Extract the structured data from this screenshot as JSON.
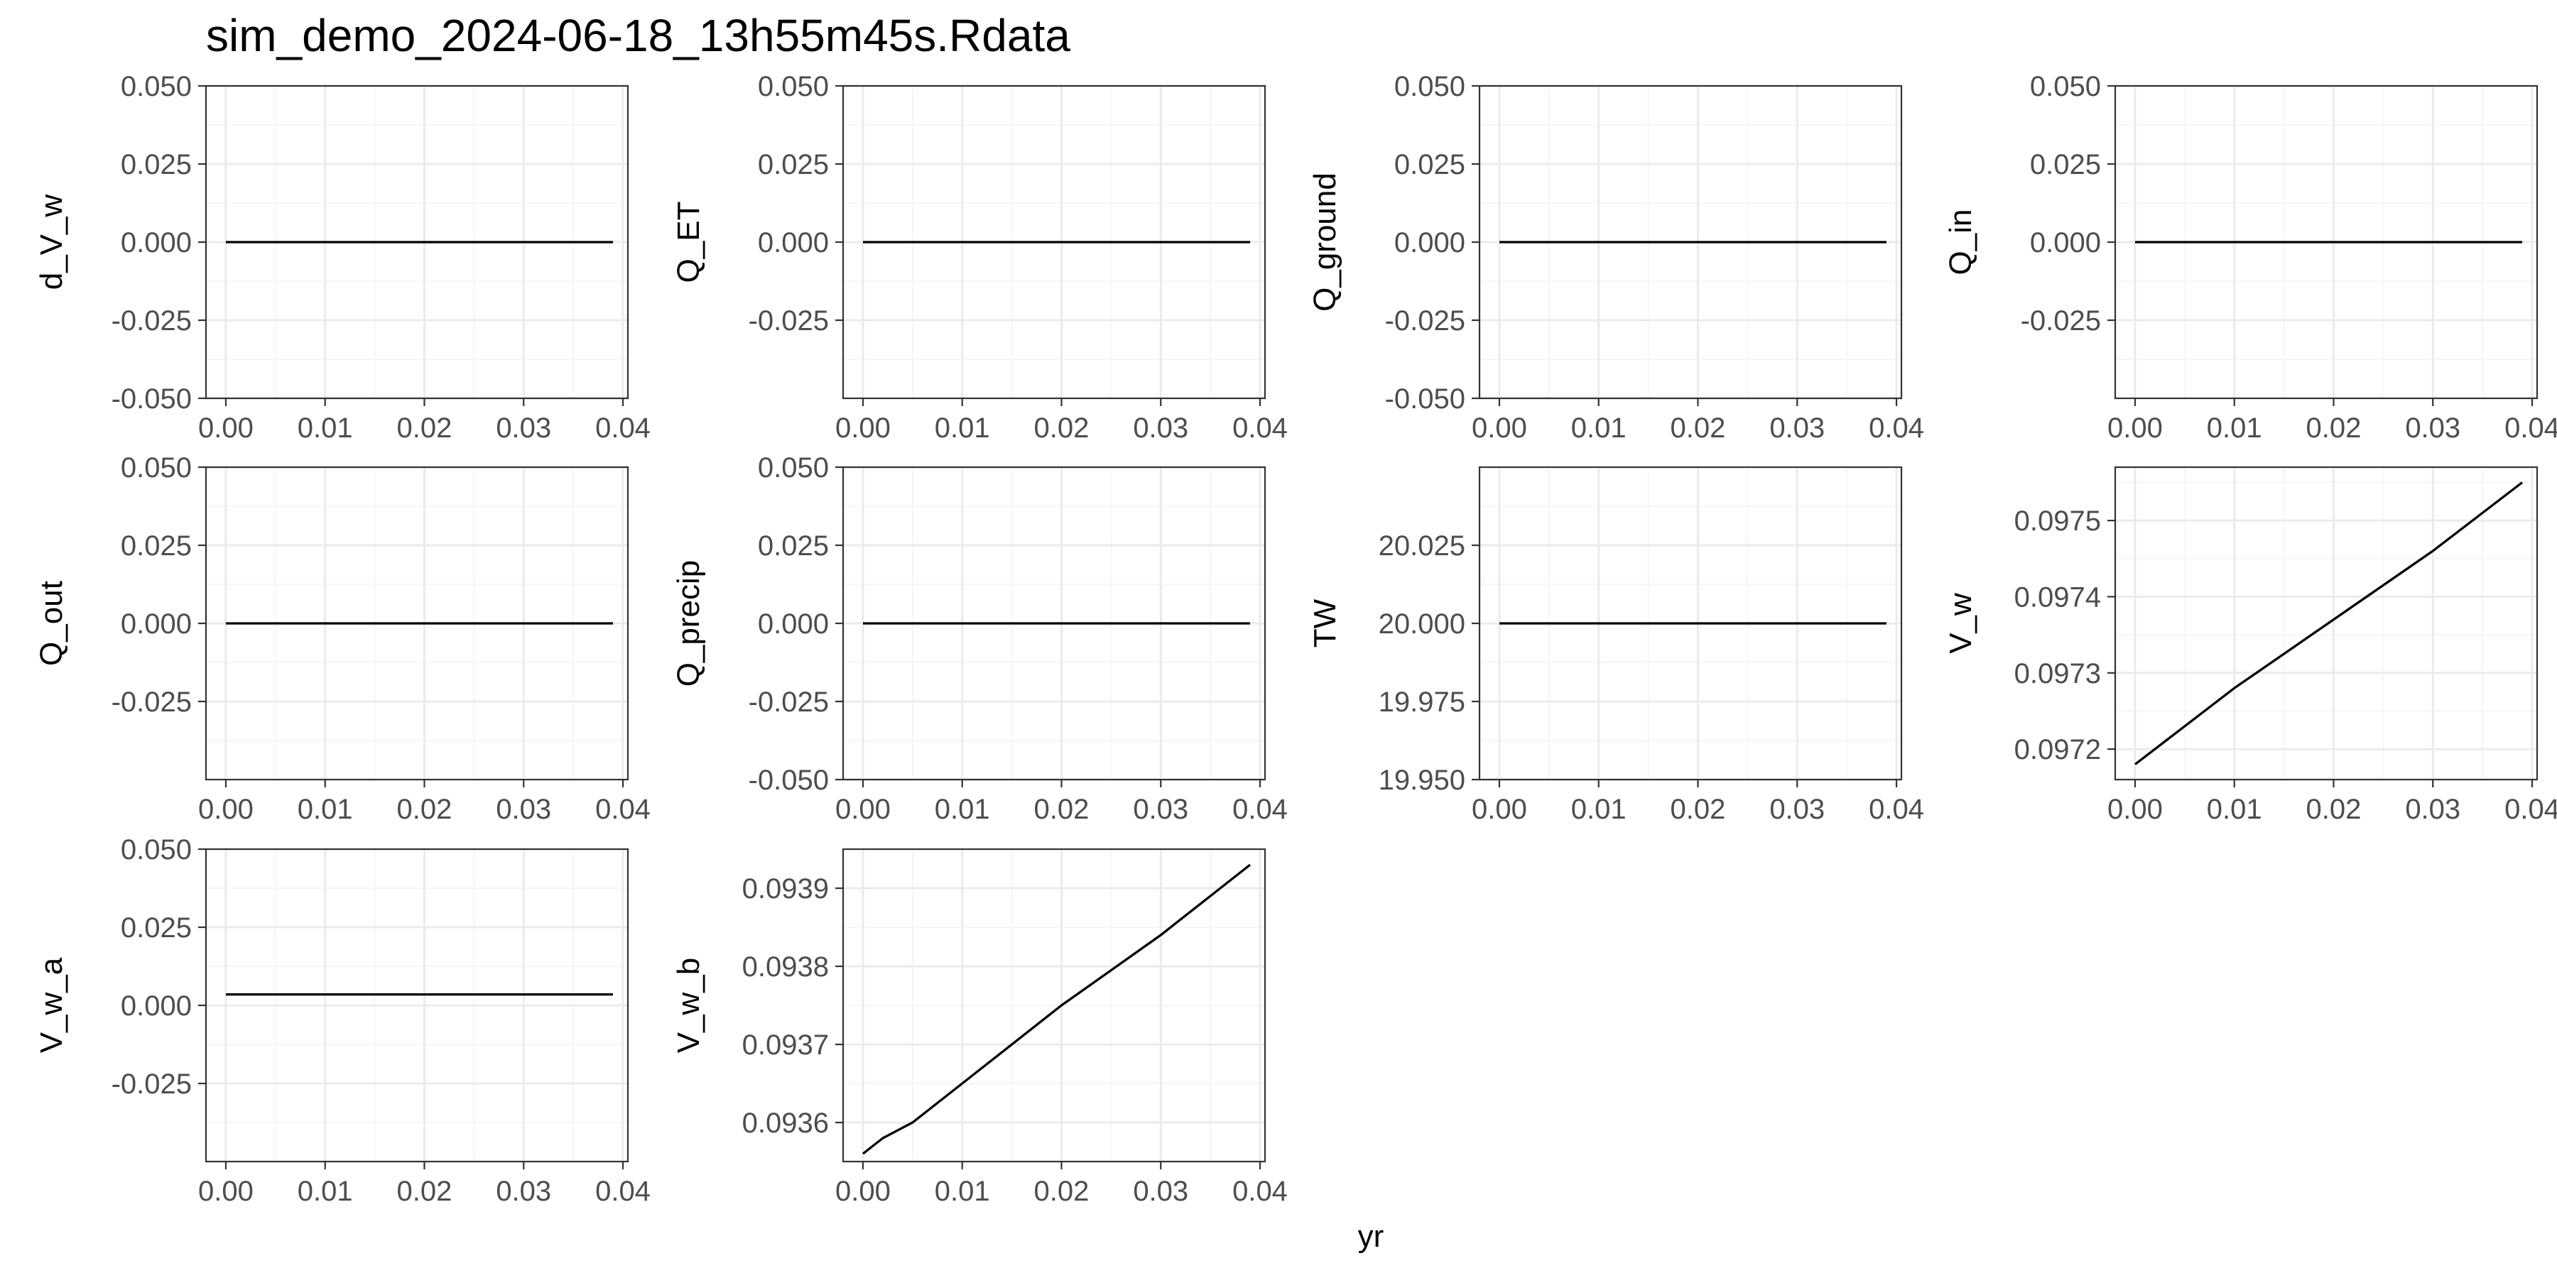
{
  "chart_data": {
    "type": "line",
    "title": "sim_demo_2024-06-18_13h55m45s.Rdata",
    "xlabel": "yr",
    "x_ticks": [
      "0.00",
      "0.01",
      "0.02",
      "0.03",
      "0.04"
    ],
    "xlim": [
      -0.002,
      0.0405
    ],
    "facets": [
      {
        "ylabel": "d_V_w",
        "ylim": [
          -0.05,
          0.05
        ],
        "y_ticks": [
          "-0.050",
          "-0.025",
          "0.000",
          "0.025",
          "0.050"
        ],
        "x": [
          0,
          0.039
        ],
        "y": [
          0,
          0
        ]
      },
      {
        "ylabel": "Q_ET",
        "ylim": [
          -0.05,
          0.05
        ],
        "y_ticks": [
          "-0.025",
          "0.000",
          "0.025",
          "0.050"
        ],
        "x": [
          0,
          0.039
        ],
        "y": [
          0,
          0
        ]
      },
      {
        "ylabel": "Q_ground",
        "ylim": [
          -0.05,
          0.05
        ],
        "y_ticks": [
          "-0.050",
          "-0.025",
          "0.000",
          "0.025",
          "0.050"
        ],
        "x": [
          0,
          0.039
        ],
        "y": [
          0,
          0
        ]
      },
      {
        "ylabel": "Q_in",
        "ylim": [
          -0.05,
          0.05
        ],
        "y_ticks": [
          "-0.025",
          "0.000",
          "0.025",
          "0.050"
        ],
        "x": [
          0,
          0.039
        ],
        "y": [
          0,
          0
        ]
      },
      {
        "ylabel": "Q_out",
        "ylim": [
          -0.05,
          0.05
        ],
        "y_ticks": [
          "-0.025",
          "0.000",
          "0.025",
          "0.050"
        ],
        "x": [
          0,
          0.039
        ],
        "y": [
          0,
          0
        ]
      },
      {
        "ylabel": "Q_precip",
        "ylim": [
          -0.05,
          0.05
        ],
        "y_ticks": [
          "-0.050",
          "-0.025",
          "0.000",
          "0.025",
          "0.050"
        ],
        "x": [
          0,
          0.039
        ],
        "y": [
          0,
          0
        ]
      },
      {
        "ylabel": "TW",
        "ylim": [
          19.95,
          20.05
        ],
        "y_ticks": [
          "19.950",
          "19.975",
          "20.000",
          "20.025"
        ],
        "x": [
          0,
          0.039
        ],
        "y": [
          20,
          20
        ]
      },
      {
        "ylabel": "V_w",
        "ylim": [
          0.09716,
          0.09757
        ],
        "y_ticks": [
          "0.0972",
          "0.0973",
          "0.0974",
          "0.0975"
        ],
        "x": [
          0,
          0.001,
          0.002,
          0.005,
          0.01,
          0.02,
          0.03,
          0.039
        ],
        "y": [
          0.09718,
          0.09719,
          0.0972,
          0.09723,
          0.09728,
          0.09737,
          0.09746,
          0.09755
        ]
      },
      {
        "ylabel": "V_w_a",
        "ylim": [
          -0.05,
          0.05
        ],
        "y_ticks": [
          "-0.025",
          "0.000",
          "0.025",
          "0.050"
        ],
        "x": [
          0,
          0.039
        ],
        "y": [
          0.0035,
          0.0035
        ]
      },
      {
        "ylabel": "V_w_b",
        "ylim": [
          0.09355,
          0.09395
        ],
        "y_ticks": [
          "0.0936",
          "0.0937",
          "0.0938",
          "0.0939"
        ],
        "x": [
          0,
          0.001,
          0.002,
          0.005,
          0.01,
          0.02,
          0.03,
          0.039
        ],
        "y": [
          0.09356,
          0.09357,
          0.09358,
          0.0936,
          0.09365,
          0.09375,
          0.09384,
          0.09393
        ]
      }
    ]
  }
}
